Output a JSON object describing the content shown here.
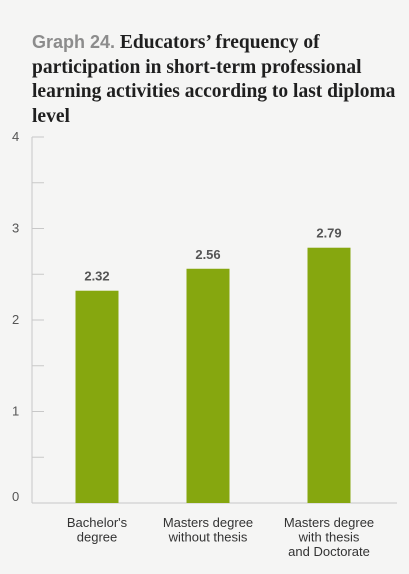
{
  "chart_title": {
    "prefix": "Graph 24.",
    "text": "Educators’ frequency of participation in short-term professional learning activities according to last diploma level"
  },
  "chart_data": {
    "type": "bar",
    "categories": [
      [
        "Bachelor's",
        "degree"
      ],
      [
        "Masters degree",
        "without thesis"
      ],
      [
        "Masters degree",
        "with thesis",
        "and Doctorate"
      ]
    ],
    "values": [
      2.32,
      2.56,
      2.79
    ],
    "value_labels": [
      "2.32",
      "2.56",
      "2.79"
    ],
    "ylim": [
      0,
      4
    ],
    "yticks": [
      0,
      1,
      2,
      3,
      4
    ],
    "minor_ticks": [
      0.5,
      1.5,
      2.5,
      3.5
    ],
    "legend": false,
    "bar_color": "#86a70f"
  }
}
